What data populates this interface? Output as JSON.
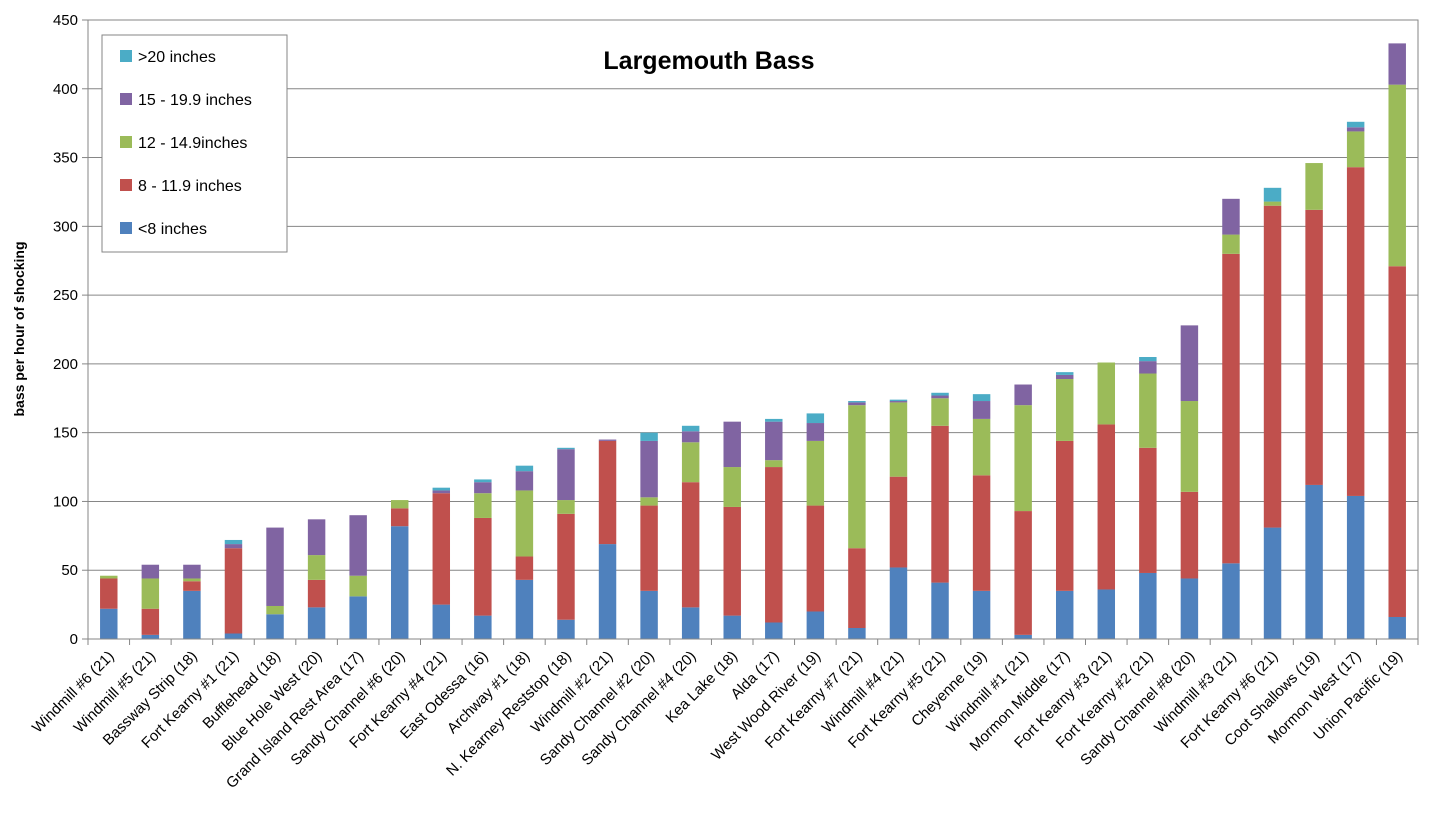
{
  "chart_data": {
    "type": "bar",
    "stacked": true,
    "title": "Largemouth Bass",
    "ylabel": "bass per hour of shocking",
    "xlabel": "",
    "ylim": [
      0,
      450
    ],
    "yticks": [
      0,
      50,
      100,
      150,
      200,
      250,
      300,
      350,
      400,
      450
    ],
    "grid": true,
    "legend_position": "top-left",
    "categories": [
      "Windmill #6 (21)",
      "Windmill #5 (21)",
      "Bassway Strip (18)",
      "Fort Kearny #1 (21)",
      "Bufflehead (18)",
      "Blue Hole West (20)",
      "Grand Island Rest Area (17)",
      "Sandy Channel #6 (20)",
      "Fort Kearny #4 (21)",
      "East Odessa (16)",
      "Archway #1  (18)",
      "N. Kearney Reststop (18)",
      "Windmill #2 (21)",
      "Sandy Channel #2 (20)",
      "Sandy Channel #4 (20)",
      "Kea Lake (18)",
      "Alda (17)",
      "West Wood River (19)",
      "Fort Kearny #7 (21)",
      "Windmill #4 (21)",
      "Fort Kearny #5 (21)",
      "Cheyenne (19)",
      "Windmill #1 (21)",
      "Mormon Middle (17)",
      "Fort Kearny #3 (21)",
      "Fort Kearny #2 (21)",
      "Sandy Channel #8 (20)",
      "Windmill #3 (21)",
      "Fort Kearny #6 (21)",
      "Coot Shallows (19)",
      "Mormon West (17)",
      "Union Pacific (19)"
    ],
    "series": [
      {
        "name": "<8 inches",
        "color": "#4F81BD",
        "values": [
          22,
          3,
          35,
          4,
          18,
          23,
          31,
          82,
          25,
          17,
          43,
          14,
          69,
          35,
          23,
          17,
          12,
          20,
          8,
          52,
          41,
          35,
          3,
          35,
          36,
          48,
          44,
          55,
          81,
          112,
          104,
          16
        ]
      },
      {
        "name": "8 - 11.9 inches",
        "color": "#C0504D",
        "values": [
          22,
          19,
          7,
          62,
          0,
          20,
          0,
          13,
          81,
          71,
          17,
          77,
          75,
          62,
          91,
          79,
          113,
          77,
          58,
          66,
          114,
          84,
          90,
          109,
          120,
          91,
          63,
          225,
          234,
          200,
          239,
          255
        ]
      },
      {
        "name": "12 - 14.9inches",
        "color": "#9BBB59",
        "values": [
          2,
          22,
          2,
          0,
          6,
          18,
          15,
          6,
          0,
          18,
          48,
          10,
          0,
          6,
          29,
          29,
          5,
          47,
          104,
          54,
          20,
          41,
          77,
          45,
          45,
          54,
          66,
          14,
          3,
          34,
          26,
          132
        ]
      },
      {
        "name": "15 - 19.9 inches",
        "color": "#8064A2",
        "values": [
          0,
          10,
          10,
          3,
          57,
          26,
          44,
          0,
          2,
          8,
          14,
          37,
          1,
          41,
          8,
          33,
          28,
          13,
          2,
          1,
          2,
          13,
          15,
          3,
          0,
          9,
          55,
          26,
          0,
          0,
          3,
          30
        ]
      },
      {
        "name": ">20 inches",
        "color": "#4BACC6",
        "values": [
          0,
          0,
          0,
          3,
          0,
          0,
          0,
          0,
          2,
          2,
          4,
          1,
          0,
          6,
          4,
          0,
          2,
          7,
          1,
          1,
          2,
          5,
          0,
          2,
          0,
          3,
          0,
          0,
          10,
          0,
          4,
          0
        ]
      }
    ]
  }
}
